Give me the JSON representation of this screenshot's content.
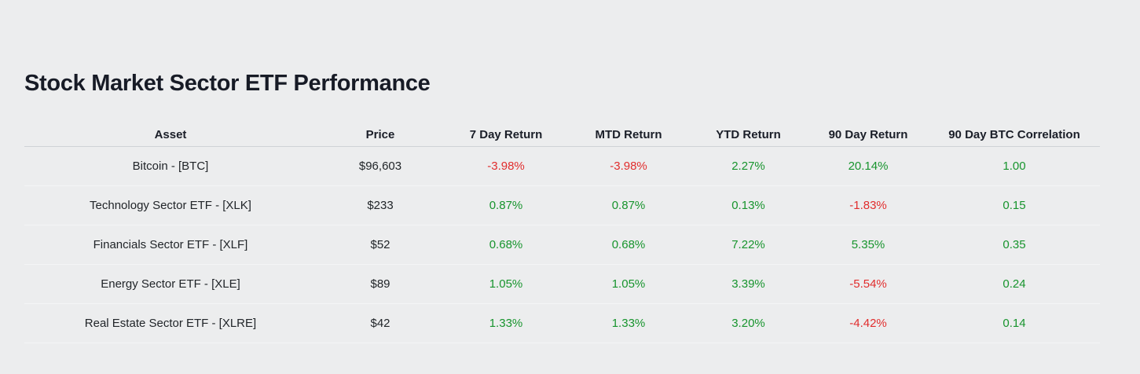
{
  "page": {
    "title": "Stock Market Sector ETF Performance"
  },
  "colors": {
    "background": "#ECEDEE",
    "title_text": "#171B26",
    "body_text": "#212529",
    "positive": "#17942D",
    "negative": "#E12D2D"
  },
  "table": {
    "columns": [
      {
        "id": "asset",
        "label": "Asset"
      },
      {
        "id": "price",
        "label": "Price"
      },
      {
        "id": "r7d",
        "label": "7 Day Return"
      },
      {
        "id": "mtd",
        "label": "MTD Return"
      },
      {
        "id": "ytd",
        "label": "YTD Return"
      },
      {
        "id": "r90d",
        "label": "90 Day Return"
      },
      {
        "id": "btc_corr",
        "label": "90 Day BTC Correlation"
      }
    ],
    "rows": [
      {
        "asset": "Bitcoin - [BTC]",
        "price": "$96,603",
        "r7d": {
          "text": "-3.98%",
          "sentiment": "negative"
        },
        "mtd": {
          "text": "-3.98%",
          "sentiment": "negative"
        },
        "ytd": {
          "text": "2.27%",
          "sentiment": "positive"
        },
        "r90d": {
          "text": "20.14%",
          "sentiment": "positive"
        },
        "btc_corr": {
          "text": "1.00",
          "sentiment": "positive"
        }
      },
      {
        "asset": "Technology Sector ETF - [XLK]",
        "price": "$233",
        "r7d": {
          "text": "0.87%",
          "sentiment": "positive"
        },
        "mtd": {
          "text": "0.87%",
          "sentiment": "positive"
        },
        "ytd": {
          "text": "0.13%",
          "sentiment": "positive"
        },
        "r90d": {
          "text": "-1.83%",
          "sentiment": "negative"
        },
        "btc_corr": {
          "text": "0.15",
          "sentiment": "positive"
        }
      },
      {
        "asset": "Financials Sector ETF - [XLF]",
        "price": "$52",
        "r7d": {
          "text": "0.68%",
          "sentiment": "positive"
        },
        "mtd": {
          "text": "0.68%",
          "sentiment": "positive"
        },
        "ytd": {
          "text": "7.22%",
          "sentiment": "positive"
        },
        "r90d": {
          "text": "5.35%",
          "sentiment": "positive"
        },
        "btc_corr": {
          "text": "0.35",
          "sentiment": "positive"
        }
      },
      {
        "asset": "Energy Sector ETF - [XLE]",
        "price": "$89",
        "r7d": {
          "text": "1.05%",
          "sentiment": "positive"
        },
        "mtd": {
          "text": "1.05%",
          "sentiment": "positive"
        },
        "ytd": {
          "text": "3.39%",
          "sentiment": "positive"
        },
        "r90d": {
          "text": "-5.54%",
          "sentiment": "negative"
        },
        "btc_corr": {
          "text": "0.24",
          "sentiment": "positive"
        }
      },
      {
        "asset": "Real Estate Sector ETF - [XLRE]",
        "price": "$42",
        "r7d": {
          "text": "1.33%",
          "sentiment": "positive"
        },
        "mtd": {
          "text": "1.33%",
          "sentiment": "positive"
        },
        "ytd": {
          "text": "3.20%",
          "sentiment": "positive"
        },
        "r90d": {
          "text": "-4.42%",
          "sentiment": "negative"
        },
        "btc_corr": {
          "text": "0.14",
          "sentiment": "positive"
        }
      }
    ]
  }
}
